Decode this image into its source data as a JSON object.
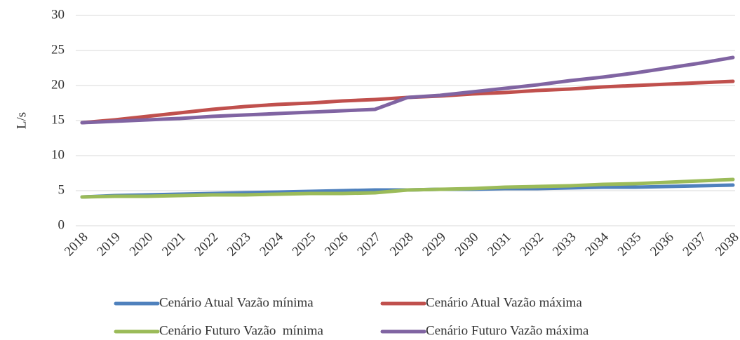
{
  "chart_data": {
    "type": "line",
    "y_label": "L/s",
    "categories": [
      "2018",
      "2019",
      "2020",
      "2021",
      "2022",
      "2023",
      "2024",
      "2025",
      "2026",
      "2027",
      "2028",
      "2029",
      "2030",
      "2031",
      "2032",
      "2033",
      "2034",
      "2035",
      "2036",
      "2037",
      "2038"
    ],
    "series": [
      {
        "name": "Cenário Atual Vazão mínima",
        "color": "#4f81bd",
        "values": [
          4.1,
          4.3,
          4.4,
          4.5,
          4.6,
          4.7,
          4.8,
          4.9,
          5.0,
          5.1,
          5.1,
          5.2,
          5.2,
          5.3,
          5.3,
          5.4,
          5.5,
          5.5,
          5.6,
          5.7,
          5.8
        ]
      },
      {
        "name": "Cenário Atual Vazão máxima",
        "color": "#c0504d",
        "values": [
          14.7,
          15.1,
          15.6,
          16.1,
          16.6,
          17.0,
          17.3,
          17.5,
          17.8,
          18.0,
          18.3,
          18.5,
          18.8,
          19.0,
          19.3,
          19.5,
          19.8,
          20.0,
          20.2,
          20.4,
          20.6
        ]
      },
      {
        "name": "Cenário Futuro Vazão  mínima",
        "color": "#9bbb59",
        "values": [
          4.1,
          4.2,
          4.2,
          4.3,
          4.4,
          4.4,
          4.5,
          4.6,
          4.6,
          4.7,
          5.1,
          5.2,
          5.3,
          5.5,
          5.6,
          5.7,
          5.9,
          6.0,
          6.2,
          6.4,
          6.6
        ]
      },
      {
        "name": "Cenário Futuro Vazão máxima",
        "color": "#8064a2",
        "values": [
          14.7,
          14.9,
          15.1,
          15.3,
          15.6,
          15.8,
          16.0,
          16.2,
          16.4,
          16.6,
          18.3,
          18.6,
          19.1,
          19.6,
          20.1,
          20.7,
          21.2,
          21.8,
          22.5,
          23.2,
          24.0
        ]
      }
    ],
    "ylim": [
      0,
      30
    ],
    "yticks": [
      0,
      5,
      10,
      15,
      20,
      25,
      30
    ],
    "grid": true,
    "legend": "bottom"
  }
}
